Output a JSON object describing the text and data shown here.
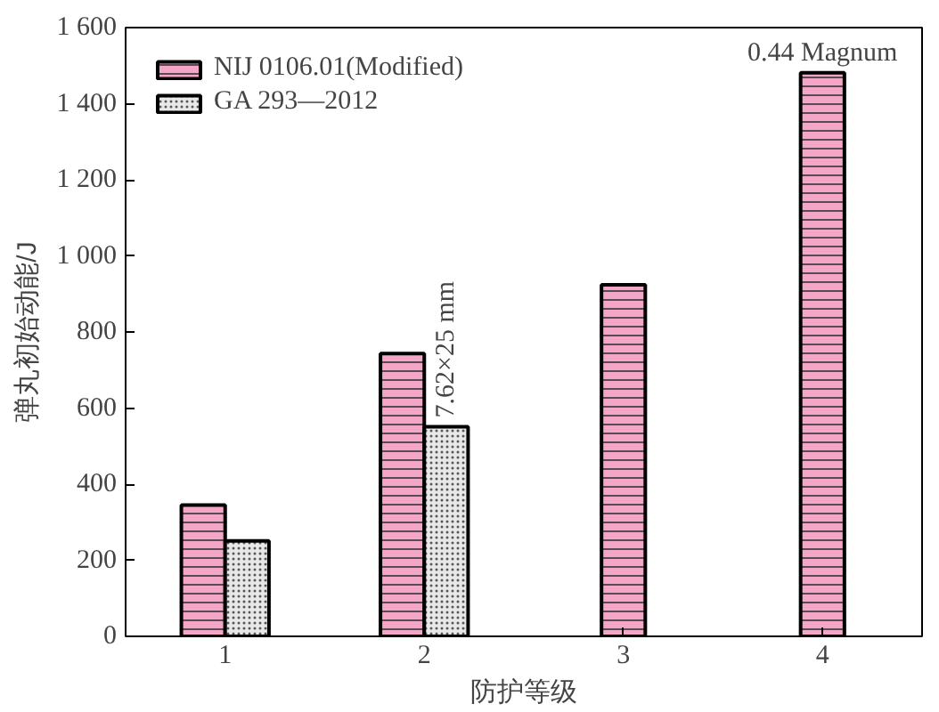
{
  "chart_data": {
    "type": "bar",
    "xlabel": "防护等级",
    "ylabel": "弹丸初始动能/J",
    "categories": [
      "1",
      "2",
      "3",
      "4"
    ],
    "series": [
      {
        "name": "NIJ 0106.01(Modified)",
        "color": "#f4a6c8",
        "values": [
          345,
          743,
          924,
          1481
        ]
      },
      {
        "name": "GA 293—2012",
        "color": "#e8e8e8",
        "values": [
          251,
          551,
          null,
          null
        ]
      }
    ],
    "ylim": [
      0,
      1600
    ],
    "yticks": [
      0,
      200,
      400,
      600,
      800,
      {
        "value": 1000,
        "label": "1 000"
      },
      {
        "value": 1200,
        "label": "1 200"
      },
      {
        "value": 1400,
        "label": "1 400"
      },
      {
        "value": 1600,
        "label": "1 600"
      }
    ],
    "annotations": [
      {
        "text": "7.62×25 mm",
        "x": "2",
        "y": 551
      },
      {
        "text": "0.44 Magnum",
        "x": "4",
        "y": 1481
      }
    ],
    "legend": "top left",
    "grid": false
  }
}
